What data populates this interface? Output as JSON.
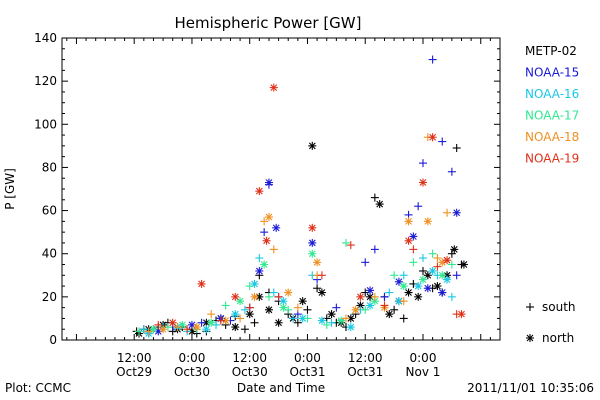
{
  "chart_data": {
    "type": "scatter",
    "title": "Hemispheric Power [GW]",
    "ylabel": "P [GW]",
    "xlabel": "Date and Time",
    "ylim": [
      0,
      140
    ],
    "yticks": [
      0,
      20,
      40,
      60,
      80,
      100,
      120,
      140
    ],
    "xlim_hours": [
      -15,
      76
    ],
    "xticks": [
      {
        "h": 0,
        "time": "12:00",
        "date": "Oct29"
      },
      {
        "h": 12,
        "time": "0:00",
        "date": "Oct30"
      },
      {
        "h": 24,
        "time": "12:00",
        "date": "Oct30"
      },
      {
        "h": 36,
        "time": "0:00",
        "date": "Oct31"
      },
      {
        "h": 48,
        "time": "12:00",
        "date": "Oct31"
      },
      {
        "h": 60,
        "time": "0:00",
        "date": "Nov 1"
      }
    ],
    "x_reference": "h = hours since 2011-10-29 12:00",
    "markers": {
      "south": "+",
      "north": "*"
    },
    "legend_position": "right",
    "series": [
      {
        "name": "METP-02",
        "color": "#000000",
        "south": [
          [
            0.5,
            4
          ],
          [
            2,
            5
          ],
          [
            3,
            3
          ],
          [
            5,
            6
          ],
          [
            7,
            8
          ],
          [
            8,
            4
          ],
          [
            10,
            6
          ],
          [
            12,
            5
          ],
          [
            13,
            3
          ],
          [
            15,
            4
          ],
          [
            17,
            9
          ],
          [
            19,
            7
          ],
          [
            21,
            11
          ],
          [
            23,
            5
          ],
          [
            25,
            8
          ],
          [
            26,
            30
          ],
          [
            28,
            22
          ],
          [
            30,
            18
          ],
          [
            32,
            12
          ],
          [
            34,
            8
          ],
          [
            36,
            14
          ],
          [
            38,
            24
          ],
          [
            40,
            10
          ],
          [
            42,
            8
          ],
          [
            44,
            6
          ],
          [
            46,
            12
          ],
          [
            48,
            22
          ],
          [
            50,
            66
          ],
          [
            52,
            20
          ],
          [
            54,
            14
          ],
          [
            56,
            10
          ],
          [
            58,
            26
          ],
          [
            60,
            32
          ],
          [
            62,
            24
          ],
          [
            64,
            22
          ],
          [
            66,
            40
          ],
          [
            67,
            89
          ],
          [
            68,
            35
          ]
        ],
        "north": [
          [
            1,
            3
          ],
          [
            3,
            5
          ],
          [
            6,
            7
          ],
          [
            9,
            5
          ],
          [
            12,
            4
          ],
          [
            15,
            8
          ],
          [
            18,
            10
          ],
          [
            21,
            6
          ],
          [
            24,
            12
          ],
          [
            26,
            20
          ],
          [
            28,
            14
          ],
          [
            30,
            8
          ],
          [
            33,
            10
          ],
          [
            35,
            18
          ],
          [
            37,
            90
          ],
          [
            39,
            22
          ],
          [
            41,
            12
          ],
          [
            43,
            8
          ],
          [
            45,
            10
          ],
          [
            47,
            16
          ],
          [
            49,
            20
          ],
          [
            51,
            63
          ],
          [
            53,
            12
          ],
          [
            55,
            18
          ],
          [
            57,
            22
          ],
          [
            59,
            20
          ],
          [
            61,
            30
          ],
          [
            63,
            25
          ],
          [
            65,
            30
          ],
          [
            66.5,
            42
          ],
          [
            68.5,
            35
          ]
        ]
      },
      {
        "name": "NOAA-15",
        "color": "#1a1ad8",
        "south": [
          [
            4,
            5
          ],
          [
            8,
            6
          ],
          [
            14,
            8
          ],
          [
            20,
            9
          ],
          [
            24,
            15
          ],
          [
            27,
            50
          ],
          [
            28,
            72
          ],
          [
            30,
            20
          ],
          [
            34,
            12
          ],
          [
            38,
            28
          ],
          [
            42,
            15
          ],
          [
            48,
            36
          ],
          [
            50,
            42
          ],
          [
            52,
            20
          ],
          [
            57,
            58
          ],
          [
            59,
            62
          ],
          [
            60,
            82
          ],
          [
            62,
            130
          ],
          [
            64,
            92
          ],
          [
            66,
            78
          ],
          [
            67,
            30
          ]
        ],
        "north": [
          [
            5,
            4
          ],
          [
            12,
            7
          ],
          [
            18,
            10
          ],
          [
            26,
            32
          ],
          [
            28,
            73
          ],
          [
            29.5,
            52
          ],
          [
            37,
            45
          ],
          [
            49,
            23
          ],
          [
            55,
            27
          ],
          [
            58,
            48
          ],
          [
            61,
            24
          ],
          [
            64,
            22
          ],
          [
            67,
            59
          ]
        ]
      },
      {
        "name": "NOAA-16",
        "color": "#18c8e6",
        "south": [
          [
            2,
            5
          ],
          [
            6,
            6
          ],
          [
            11,
            4
          ],
          [
            17,
            7
          ],
          [
            23,
            14
          ],
          [
            26,
            38
          ],
          [
            29,
            22
          ],
          [
            33,
            10
          ],
          [
            37,
            30
          ],
          [
            41,
            8
          ],
          [
            47,
            14
          ],
          [
            53,
            22
          ],
          [
            56,
            30
          ],
          [
            60,
            38
          ],
          [
            63,
            30
          ],
          [
            66,
            20
          ]
        ],
        "north": [
          [
            3,
            3
          ],
          [
            9,
            6
          ],
          [
            15,
            5
          ],
          [
            21,
            12
          ],
          [
            25,
            26
          ],
          [
            31,
            18
          ],
          [
            35,
            10
          ],
          [
            39,
            9
          ],
          [
            45,
            6
          ],
          [
            49,
            16
          ],
          [
            55,
            18
          ],
          [
            59,
            25
          ],
          [
            62,
            32
          ],
          [
            65,
            28
          ]
        ]
      },
      {
        "name": "NOAA-17",
        "color": "#30e890",
        "south": [
          [
            1,
            4
          ],
          [
            7,
            6
          ],
          [
            13,
            5
          ],
          [
            19,
            16
          ],
          [
            24,
            25
          ],
          [
            28,
            20
          ],
          [
            32,
            14
          ],
          [
            36,
            10
          ],
          [
            40,
            7
          ],
          [
            44,
            45
          ],
          [
            48,
            14
          ],
          [
            54,
            30
          ],
          [
            58,
            36
          ],
          [
            62,
            40
          ],
          [
            66,
            35
          ]
        ],
        "north": [
          [
            4,
            5
          ],
          [
            10,
            7
          ],
          [
            16,
            8
          ],
          [
            22,
            18
          ],
          [
            27,
            35
          ],
          [
            31,
            15
          ],
          [
            37,
            40
          ],
          [
            43,
            9
          ],
          [
            50,
            18
          ],
          [
            56,
            25
          ],
          [
            60,
            28
          ],
          [
            64,
            30
          ]
        ]
      },
      {
        "name": "NOAA-18",
        "color": "#f09020",
        "south": [
          [
            3,
            4
          ],
          [
            9,
            6
          ],
          [
            16,
            12
          ],
          [
            22,
            10
          ],
          [
            27,
            55
          ],
          [
            29,
            42
          ],
          [
            34,
            15
          ],
          [
            38,
            30
          ],
          [
            44,
            10
          ],
          [
            50,
            20
          ],
          [
            56,
            18
          ],
          [
            61,
            94
          ],
          [
            63,
            38
          ],
          [
            65,
            59
          ]
        ],
        "north": [
          [
            6,
            5
          ],
          [
            13,
            6
          ],
          [
            19,
            9
          ],
          [
            25,
            20
          ],
          [
            28,
            57
          ],
          [
            32,
            22
          ],
          [
            38,
            36
          ],
          [
            46,
            14
          ],
          [
            52,
            15
          ],
          [
            57,
            55
          ],
          [
            61,
            55
          ],
          [
            64,
            36
          ]
        ]
      },
      {
        "name": "NOAA-19",
        "color": "#e03018",
        "south": [
          [
            5,
            7
          ],
          [
            11,
            5
          ],
          [
            18,
            9
          ],
          [
            24,
            15
          ],
          [
            30,
            20
          ],
          [
            39,
            30
          ],
          [
            45,
            44
          ],
          [
            52,
            16
          ],
          [
            58,
            42
          ],
          [
            63,
            34
          ],
          [
            67,
            12
          ]
        ],
        "north": [
          [
            8,
            8
          ],
          [
            14,
            26
          ],
          [
            21,
            20
          ],
          [
            26,
            69
          ],
          [
            27.5,
            46
          ],
          [
            29,
            117
          ],
          [
            37,
            52
          ],
          [
            47,
            20
          ],
          [
            57,
            46
          ],
          [
            60,
            73
          ],
          [
            62,
            94
          ],
          [
            65,
            37
          ],
          [
            68,
            12
          ]
        ]
      }
    ]
  },
  "footer": {
    "plot_credit": "Plot: CCMC",
    "timestamp": "2011/11/01  10:35:06"
  },
  "legend_markers": {
    "south_label": "south",
    "north_label": "north"
  }
}
